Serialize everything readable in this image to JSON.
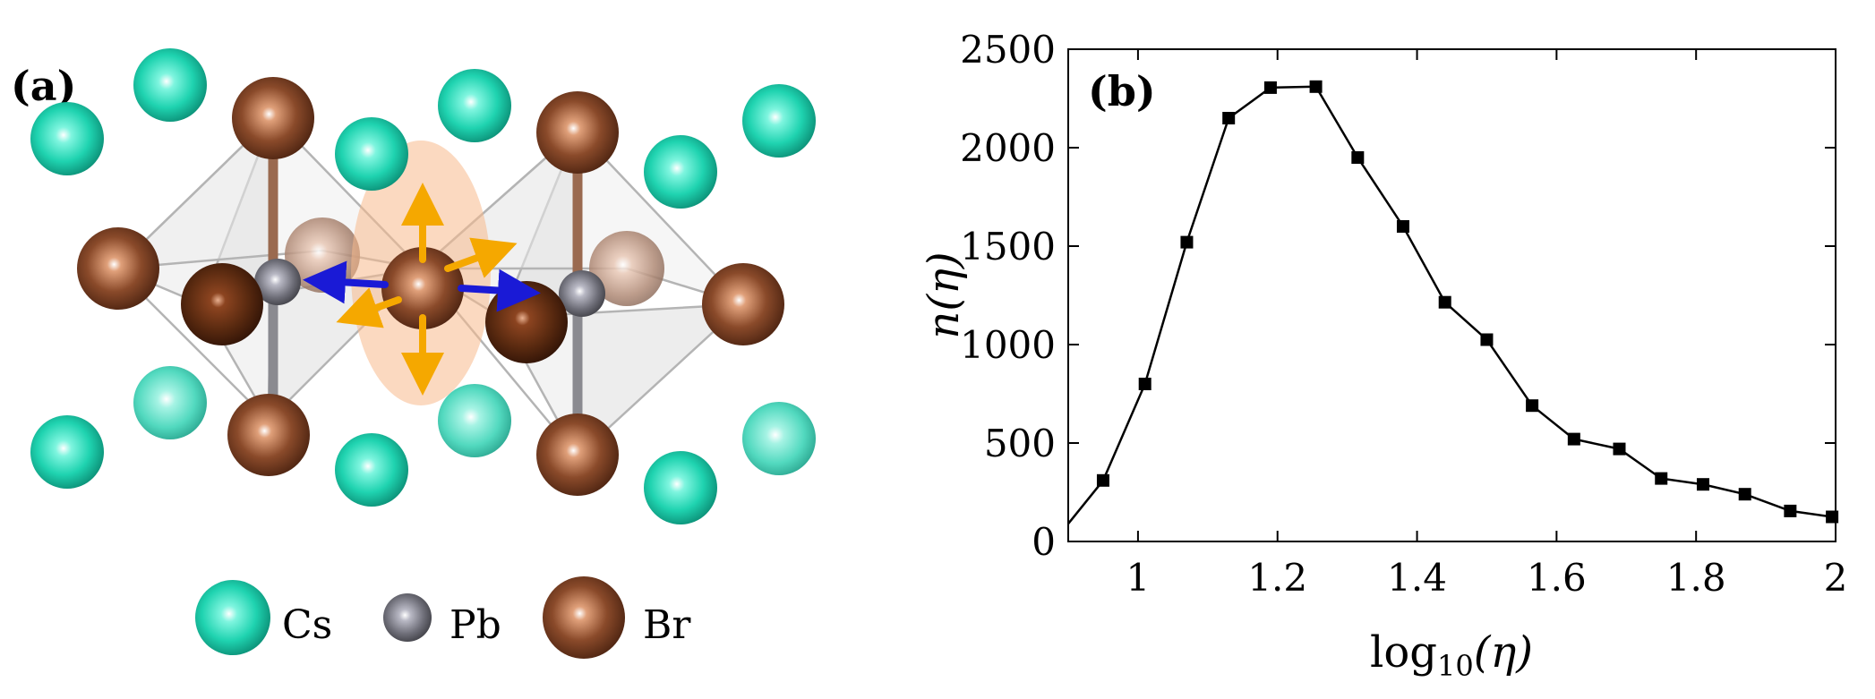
{
  "panel_a": {
    "label": "(a)",
    "legend": [
      {
        "name": "Cs",
        "color": "#22d6b3"
      },
      {
        "name": "Pb",
        "color": "#6e6e78"
      },
      {
        "name": "Br",
        "color": "#8a4a2a"
      }
    ],
    "colors": {
      "cs": "#22d6b3",
      "pb": "#6e6e78",
      "br": "#8a4a2a",
      "octahedron": "#d9d9d9",
      "highlight": "#f7b98c",
      "arrow_orange": "#f5a800",
      "arrow_blue": "#1a1ad6"
    }
  },
  "chart_data": {
    "type": "line",
    "label": "(b)",
    "xlabel": "log10(η)",
    "xlabel_main": "log",
    "xlabel_sub": "10",
    "xlabel_arg": "(η)",
    "ylabel": "n(η)",
    "xlim": [
      0.9,
      2.0
    ],
    "ylim": [
      0,
      2500
    ],
    "xticks": [
      1,
      1.2,
      1.4,
      1.6,
      1.8,
      2
    ],
    "xtick_labels": [
      "1",
      "1.2",
      "1.4",
      "1.6",
      "1.8",
      "2"
    ],
    "yticks": [
      0,
      500,
      1000,
      1500,
      2000,
      2500
    ],
    "ytick_labels": [
      "0",
      "500",
      "1000",
      "1500",
      "2000",
      "2500"
    ],
    "series": [
      {
        "x": [
          0.9,
          0.95,
          1.01,
          1.07,
          1.13,
          1.19,
          1.255,
          1.315,
          1.38,
          1.44,
          1.5,
          1.565,
          1.625,
          1.69,
          1.75,
          1.81,
          1.87,
          1.935,
          1.995
        ],
        "y": [
          90,
          310,
          800,
          1520,
          2150,
          2305,
          2310,
          1950,
          1600,
          1215,
          1025,
          690,
          520,
          470,
          320,
          290,
          240,
          155,
          125
        ],
        "markers": [
          false,
          true,
          true,
          true,
          true,
          true,
          true,
          true,
          true,
          true,
          true,
          true,
          true,
          true,
          true,
          true,
          true,
          true,
          true
        ]
      }
    ],
    "grid": false,
    "color": "#000000"
  }
}
